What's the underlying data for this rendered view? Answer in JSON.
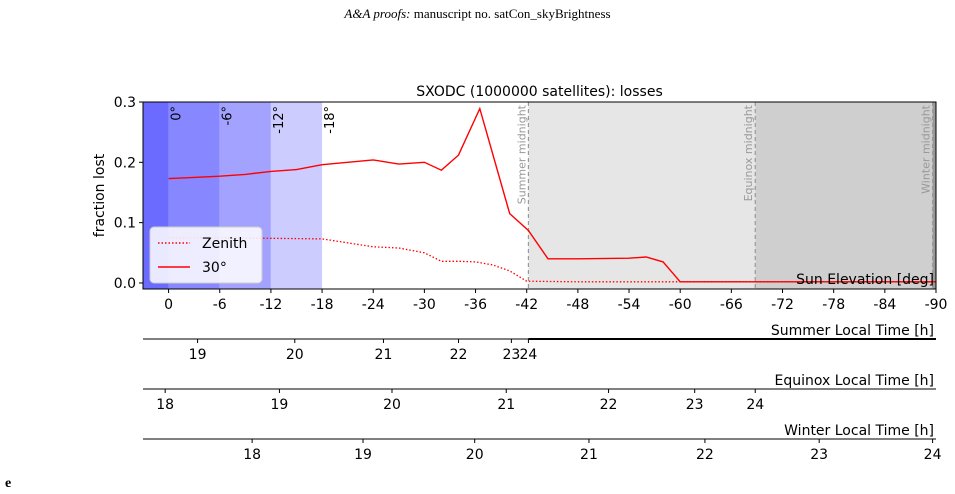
{
  "page_header": {
    "journal": "A&A proofs:",
    "manuscript": "manuscript no. satCon_skyBrightness"
  },
  "stray_text": "e",
  "chart_data": {
    "type": "line",
    "title": "SXODC (1000000 satellites): losses",
    "ylabel": "fraction lost",
    "xlabel": "Sun Elevation [deg]",
    "xlim": [
      3,
      -90
    ],
    "ylim": [
      -0.01,
      0.3
    ],
    "x_ticks": [
      0,
      -6,
      -12,
      -18,
      -24,
      -30,
      -36,
      -42,
      -48,
      -54,
      -60,
      -66,
      -72,
      -78,
      -84,
      -90
    ],
    "y_ticks": [
      0.0,
      0.1,
      0.2,
      0.3
    ],
    "twilight_bands": [
      {
        "from": 3,
        "to": 0,
        "color": "#6b6bff"
      },
      {
        "from": 0,
        "to": -6,
        "color": "#8787ff"
      },
      {
        "from": -6,
        "to": -12,
        "color": "#a3a3ff"
      },
      {
        "from": -12,
        "to": -18,
        "color": "#ccccff"
      }
    ],
    "night_regions": [
      {
        "from": -42.2,
        "to": -68.8,
        "color": "#e6e6e6"
      },
      {
        "from": -68.8,
        "to": -89.6,
        "color": "#cfcfcf"
      },
      {
        "from": -89.6,
        "to": -90,
        "color": "#999999"
      }
    ],
    "elevation_labels": [
      {
        "x": 0,
        "text": "0°"
      },
      {
        "x": -6,
        "text": "-6°"
      },
      {
        "x": -12,
        "text": "-12°"
      },
      {
        "x": -18,
        "text": "-18°"
      }
    ],
    "midnight_lines": [
      {
        "x": -42.2,
        "text": "Summer midnight"
      },
      {
        "x": -68.8,
        "text": "Equinox midnight"
      },
      {
        "x": -89.6,
        "text": "Winter midnight"
      }
    ],
    "series": [
      {
        "name": "Zenith",
        "style": "dotted",
        "color": "#ff0000",
        "points": [
          [
            0,
            0.075
          ],
          [
            -6,
            0.075
          ],
          [
            -12,
            0.074
          ],
          [
            -18,
            0.073
          ],
          [
            -24,
            0.06
          ],
          [
            -27,
            0.058
          ],
          [
            -30,
            0.05
          ],
          [
            -32,
            0.036
          ],
          [
            -34,
            0.036
          ],
          [
            -36,
            0.035
          ],
          [
            -38,
            0.03
          ],
          [
            -40,
            0.02
          ],
          [
            -42,
            0.003
          ],
          [
            -48,
            0.002
          ],
          [
            -60,
            0.002
          ],
          [
            -72,
            0.002
          ],
          [
            -84,
            0.002
          ],
          [
            -90,
            0.002
          ]
        ]
      },
      {
        "name": "30°",
        "style": "solid",
        "color": "#ff0000",
        "points": [
          [
            0,
            0.173
          ],
          [
            -3,
            0.175
          ],
          [
            -6,
            0.177
          ],
          [
            -9,
            0.18
          ],
          [
            -12,
            0.185
          ],
          [
            -15,
            0.188
          ],
          [
            -18,
            0.196
          ],
          [
            -21,
            0.2
          ],
          [
            -24,
            0.204
          ],
          [
            -27,
            0.197
          ],
          [
            -30,
            0.2
          ],
          [
            -32,
            0.187
          ],
          [
            -34,
            0.212
          ],
          [
            -36.5,
            0.289
          ],
          [
            -40,
            0.115
          ],
          [
            -42.2,
            0.087
          ],
          [
            -44.5,
            0.04
          ],
          [
            -48,
            0.04
          ],
          [
            -54,
            0.041
          ],
          [
            -56,
            0.043
          ],
          [
            -58,
            0.035
          ],
          [
            -60,
            0.002
          ],
          [
            -72,
            0.002
          ],
          [
            -84,
            0.002
          ],
          [
            -90,
            0.002
          ]
        ]
      }
    ],
    "time_axes": [
      {
        "label": "Summer Local Time [h]",
        "ticks": [
          {
            "x": -3.4,
            "text": "19"
          },
          {
            "x": -14.8,
            "text": "20"
          },
          {
            "x": -25.2,
            "text": "21"
          },
          {
            "x": -34.0,
            "text": "22"
          },
          {
            "x": -40.2,
            "text": "23"
          },
          {
            "x": -42.2,
            "text": "24"
          }
        ]
      },
      {
        "label": "Equinox Local Time [h]",
        "ticks": [
          {
            "x": 0.4,
            "text": "18"
          },
          {
            "x": -13.0,
            "text": "19"
          },
          {
            "x": -26.2,
            "text": "20"
          },
          {
            "x": -39.6,
            "text": "21"
          },
          {
            "x": -51.6,
            "text": "22"
          },
          {
            "x": -61.7,
            "text": "23"
          },
          {
            "x": -68.8,
            "text": "24"
          }
        ]
      },
      {
        "label": "Winter Local Time [h]",
        "ticks": [
          {
            "x": -9.8,
            "text": "18"
          },
          {
            "x": -22.8,
            "text": "19"
          },
          {
            "x": -35.9,
            "text": "20"
          },
          {
            "x": -49.3,
            "text": "21"
          },
          {
            "x": -62.9,
            "text": "22"
          },
          {
            "x": -76.3,
            "text": "23"
          },
          {
            "x": -89.6,
            "text": "24"
          }
        ]
      }
    ]
  }
}
